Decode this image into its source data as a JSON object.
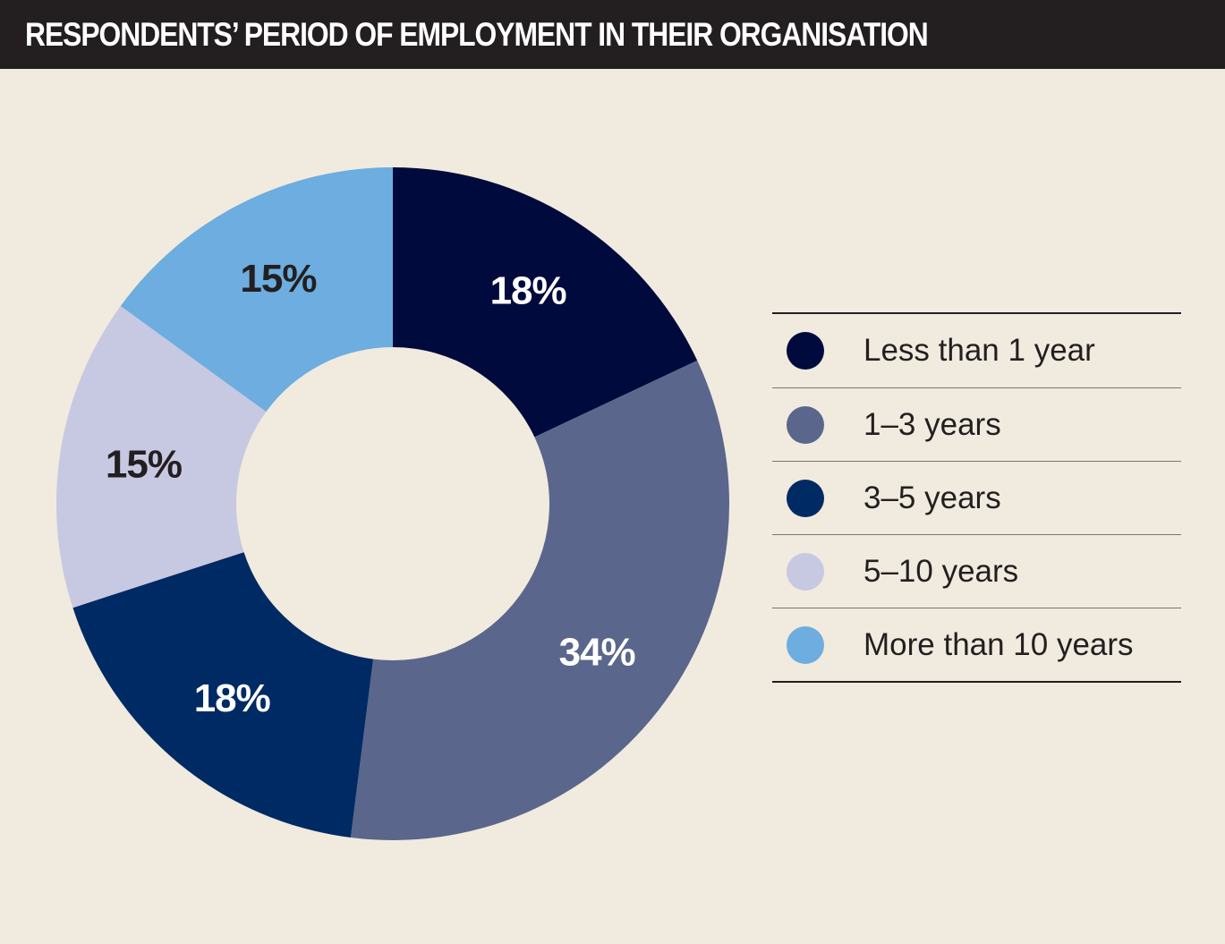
{
  "header": {
    "title": "RESPONDENTS’ PERIOD OF EMPLOYMENT IN THEIR ORGANISATION"
  },
  "colors": {
    "background": "#f0ebde",
    "header_bg": "#231f20",
    "less_than_1_year": "#000a3c",
    "1_3_years": "#5b668c",
    "3_5_years": "#002a64",
    "5_10_years": "#c7c8e2",
    "more_than_10_years": "#6dade0",
    "label_light": "#ffffff",
    "label_dark": "#231f20"
  },
  "chart_data": {
    "type": "pie",
    "donut": true,
    "title": "RESPONDENTS’ PERIOD OF EMPLOYMENT IN THEIR ORGANISATION",
    "categories": [
      "Less than 1 year",
      "1–3 years",
      "3–5 years",
      "5–10 years",
      "More than 10 years"
    ],
    "values": [
      18,
      34,
      18,
      15,
      15
    ],
    "labels": [
      "18%",
      "34%",
      "18%",
      "15%",
      "15%"
    ],
    "colors": [
      "#000a3c",
      "#5b668c",
      "#002a64",
      "#c7c8e2",
      "#6dade0"
    ],
    "label_colors": [
      "#ffffff",
      "#ffffff",
      "#ffffff",
      "#231f20",
      "#231f20"
    ],
    "start": "12 o'clock",
    "direction": "clockwise",
    "legend_position": "right"
  },
  "legend": {
    "items": [
      {
        "label": "Less than 1 year",
        "color": "#000a3c"
      },
      {
        "label": "1–3 years",
        "color": "#5b668c"
      },
      {
        "label": "3–5 years",
        "color": "#002a64"
      },
      {
        "label": "5–10 years",
        "color": "#c7c8e2"
      },
      {
        "label": "More than 10 years",
        "color": "#6dade0"
      }
    ]
  }
}
